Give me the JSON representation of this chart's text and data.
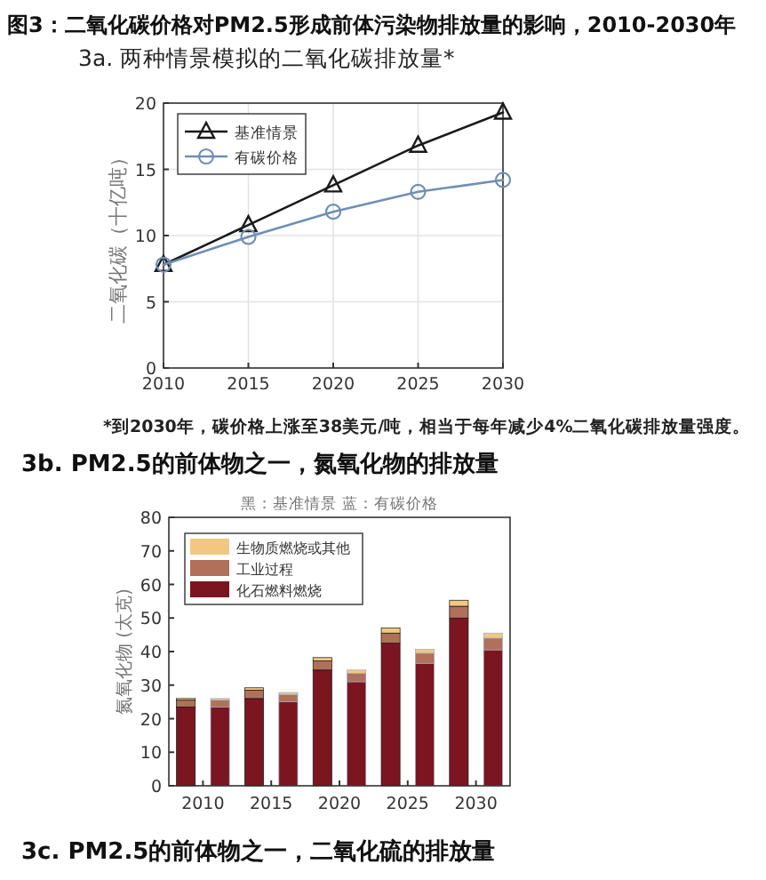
{
  "chart_data": [
    {
      "type": "line",
      "title": "图3：二氧化碳价格对PM2.5形成前体污染物排放量的影响，2010-2030年",
      "subtitle": "3a. 两种情景模拟的二氧化碳排放量*",
      "ylabel": "二氧化碳（十亿吨）",
      "x": [
        2010,
        2015,
        2020,
        2025,
        2030
      ],
      "xlim": [
        2010,
        2030
      ],
      "xticks": [
        2010,
        2015,
        2020,
        2025,
        2030
      ],
      "ylim": [
        0,
        20
      ],
      "yticks": [
        0,
        5,
        10,
        15,
        20
      ],
      "grid": true,
      "legend": "top left",
      "line_style": "solid",
      "series": [
        {
          "name": "基准情景",
          "color": "#1a1a1a",
          "marker": "triangle",
          "values": [
            7.8,
            10.8,
            13.8,
            16.8,
            19.3
          ]
        },
        {
          "name": "有碳价格",
          "color": "#6f8fb5",
          "marker": "circle",
          "values": [
            7.8,
            9.9,
            11.8,
            13.3,
            14.2
          ]
        }
      ],
      "annotations": [
        "*到2030年，碳价格上涨至38美元/吨，相当于每年减少4%二氧化碳排放量强度。"
      ]
    },
    {
      "type": "bar",
      "stacked": true,
      "title": "3b. PM2.5的前体物之一，氮氧化物的排放量",
      "subtitle": "黑：基准情景   蓝：有碳价格",
      "ylabel": "氮氧化物 (太克)",
      "categories": [
        "2010",
        null,
        "2015",
        null,
        "2020",
        null,
        "2025",
        null,
        "2030",
        null
      ],
      "ylim": [
        0,
        80
      ],
      "yticks": [
        0,
        10,
        20,
        30,
        40,
        50,
        60,
        70,
        80
      ],
      "legend": "top left",
      "series": [
        {
          "name": "化石燃料燃烧",
          "color": "#7b1520",
          "values": [
            23.5,
            23.5,
            26.0,
            25.0,
            34.5,
            31.0,
            42.5,
            36.5,
            50.0,
            40.5
          ]
        },
        {
          "name": "工业过程",
          "color": "#b0705a",
          "values": [
            2.0,
            2.0,
            2.5,
            2.2,
            2.7,
            2.5,
            3.0,
            3.0,
            3.5,
            3.5
          ]
        },
        {
          "name": "生物质燃烧或其他",
          "color": "#f2c781",
          "values": [
            0.5,
            0.5,
            0.7,
            0.6,
            1.0,
            1.0,
            1.5,
            1.2,
            1.8,
            1.5
          ]
        }
      ],
      "annotations": [
        "3c. PM2.5的前体物之一，二氧化硫的排放量"
      ]
    }
  ]
}
